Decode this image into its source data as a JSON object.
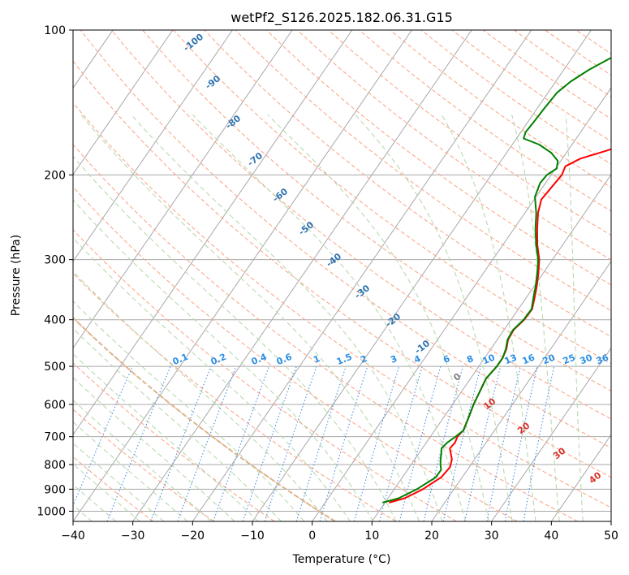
{
  "chart_data": {
    "type": "line",
    "subtype": "skew-t log-p diagram",
    "title": "wetPf2_S126.2025.182.06.31.G15",
    "xlabel": "Temperature (°C)",
    "ylabel": "Pressure (hPa)",
    "xlim": [
      -40,
      50
    ],
    "ylim": [
      1050,
      100
    ],
    "y_scale": "log",
    "grid": true,
    "x_ticks": [
      "−40",
      "−30",
      "−20",
      "−10",
      "0",
      "10",
      "20",
      "30",
      "40",
      "50"
    ],
    "y_ticks": [
      "100",
      "200",
      "300",
      "400",
      "500",
      "600",
      "700",
      "800",
      "900",
      "1000"
    ],
    "series": [
      {
        "role": "temperature",
        "color": "#ff0000",
        "points": [
          [
            10.7,
            960
          ],
          [
            12.8,
            940
          ],
          [
            14.8,
            900
          ],
          [
            16.5,
            850
          ],
          [
            16.8,
            810
          ],
          [
            16.2,
            780
          ],
          [
            15.4,
            760
          ],
          [
            14.6,
            740
          ],
          [
            14.8,
            720
          ],
          [
            14.5,
            700
          ],
          [
            14.8,
            680
          ],
          [
            14.2,
            640
          ],
          [
            13.5,
            600
          ],
          [
            13,
            560
          ],
          [
            12.6,
            530
          ],
          [
            13,
            500
          ],
          [
            13,
            480
          ],
          [
            12.6,
            460
          ],
          [
            11.8,
            440
          ],
          [
            11.6,
            420
          ],
          [
            12.2,
            400
          ],
          [
            12.3,
            380
          ],
          [
            11.4,
            360
          ],
          [
            10.4,
            340
          ],
          [
            9.2,
            320
          ],
          [
            7.8,
            300
          ],
          [
            5.8,
            280
          ],
          [
            4,
            260
          ],
          [
            2.2,
            240
          ],
          [
            1.2,
            225
          ],
          [
            1.5,
            212
          ],
          [
            1.8,
            200
          ],
          [
            1.4,
            192
          ],
          [
            3,
            185
          ],
          [
            6.5,
            178
          ],
          [
            10.5,
            170
          ],
          [
            12.5,
            162
          ],
          [
            16,
            155
          ],
          [
            18.5,
            148
          ],
          [
            21.5,
            140
          ],
          [
            23.5,
            132
          ],
          [
            25.5,
            125
          ],
          [
            27,
            118
          ],
          [
            28.2,
            112
          ],
          [
            30.7,
            106
          ],
          [
            33.4,
            100
          ]
        ]
      },
      {
        "role": "dewpoint",
        "color": "#008000",
        "points": [
          [
            9.6,
            960
          ],
          [
            11.8,
            940
          ],
          [
            13.8,
            900
          ],
          [
            15.6,
            850
          ],
          [
            15.6,
            820
          ],
          [
            14.9,
            800
          ],
          [
            14.3,
            780
          ],
          [
            13.8,
            760
          ],
          [
            13.2,
            740
          ],
          [
            13.5,
            720
          ],
          [
            14.2,
            700
          ],
          [
            14.8,
            680
          ],
          [
            14.2,
            640
          ],
          [
            13.5,
            600
          ],
          [
            13,
            560
          ],
          [
            12.6,
            530
          ],
          [
            13,
            500
          ],
          [
            13,
            480
          ],
          [
            12.5,
            460
          ],
          [
            11.7,
            440
          ],
          [
            11.5,
            420
          ],
          [
            12.1,
            400
          ],
          [
            12.2,
            380
          ],
          [
            11.2,
            360
          ],
          [
            10.2,
            340
          ],
          [
            9,
            320
          ],
          [
            7.6,
            300
          ],
          [
            5.6,
            280
          ],
          [
            3.7,
            260
          ],
          [
            1.9,
            240
          ],
          [
            -0.2,
            222
          ],
          [
            -0.9,
            208
          ],
          [
            -0.7,
            200
          ],
          [
            0.2,
            194
          ],
          [
            -0.5,
            187
          ],
          [
            -2.5,
            180
          ],
          [
            -5.5,
            173
          ],
          [
            -8.8,
            168
          ],
          [
            -9.2,
            163
          ],
          [
            -9,
            155
          ],
          [
            -8.8,
            145
          ],
          [
            -8.5,
            135
          ],
          [
            -7.5,
            128
          ],
          [
            -5.8,
            121
          ],
          [
            -3.4,
            114
          ],
          [
            -1.3,
            108
          ],
          [
            0,
            104
          ],
          [
            -0.5,
            100
          ]
        ]
      }
    ],
    "dry_adiabat_labels": [
      "-100",
      "-90",
      "-80",
      "-70",
      "-60",
      "-50",
      "-40",
      "-30",
      "-20",
      "-10"
    ],
    "mixing_ratio_labels": [
      "0.1",
      "0.2",
      "0.4",
      "0.6",
      "1",
      "1.5",
      "2",
      "3",
      "4",
      "6",
      "8",
      "10",
      "13",
      "16",
      "20",
      "25",
      "30",
      "36"
    ],
    "moist_adiabat_labels": [
      "0",
      "10",
      "20",
      "30",
      "40"
    ]
  },
  "colors": {
    "isotherm": "#a8a8a8",
    "isobar": "#a8a8a8",
    "dry_adiabat": "#fca98d",
    "moist_adiabat": "#b8dab0",
    "mixing_ratio": "#4a90e2",
    "freezing_adiabat": "#d9b68c",
    "dry_adiabat_label": "#2f73b0",
    "mixing_ratio_label": "#2b8fe6",
    "moist_adiabat_label": "#d73027",
    "zero_label": "#808080"
  }
}
